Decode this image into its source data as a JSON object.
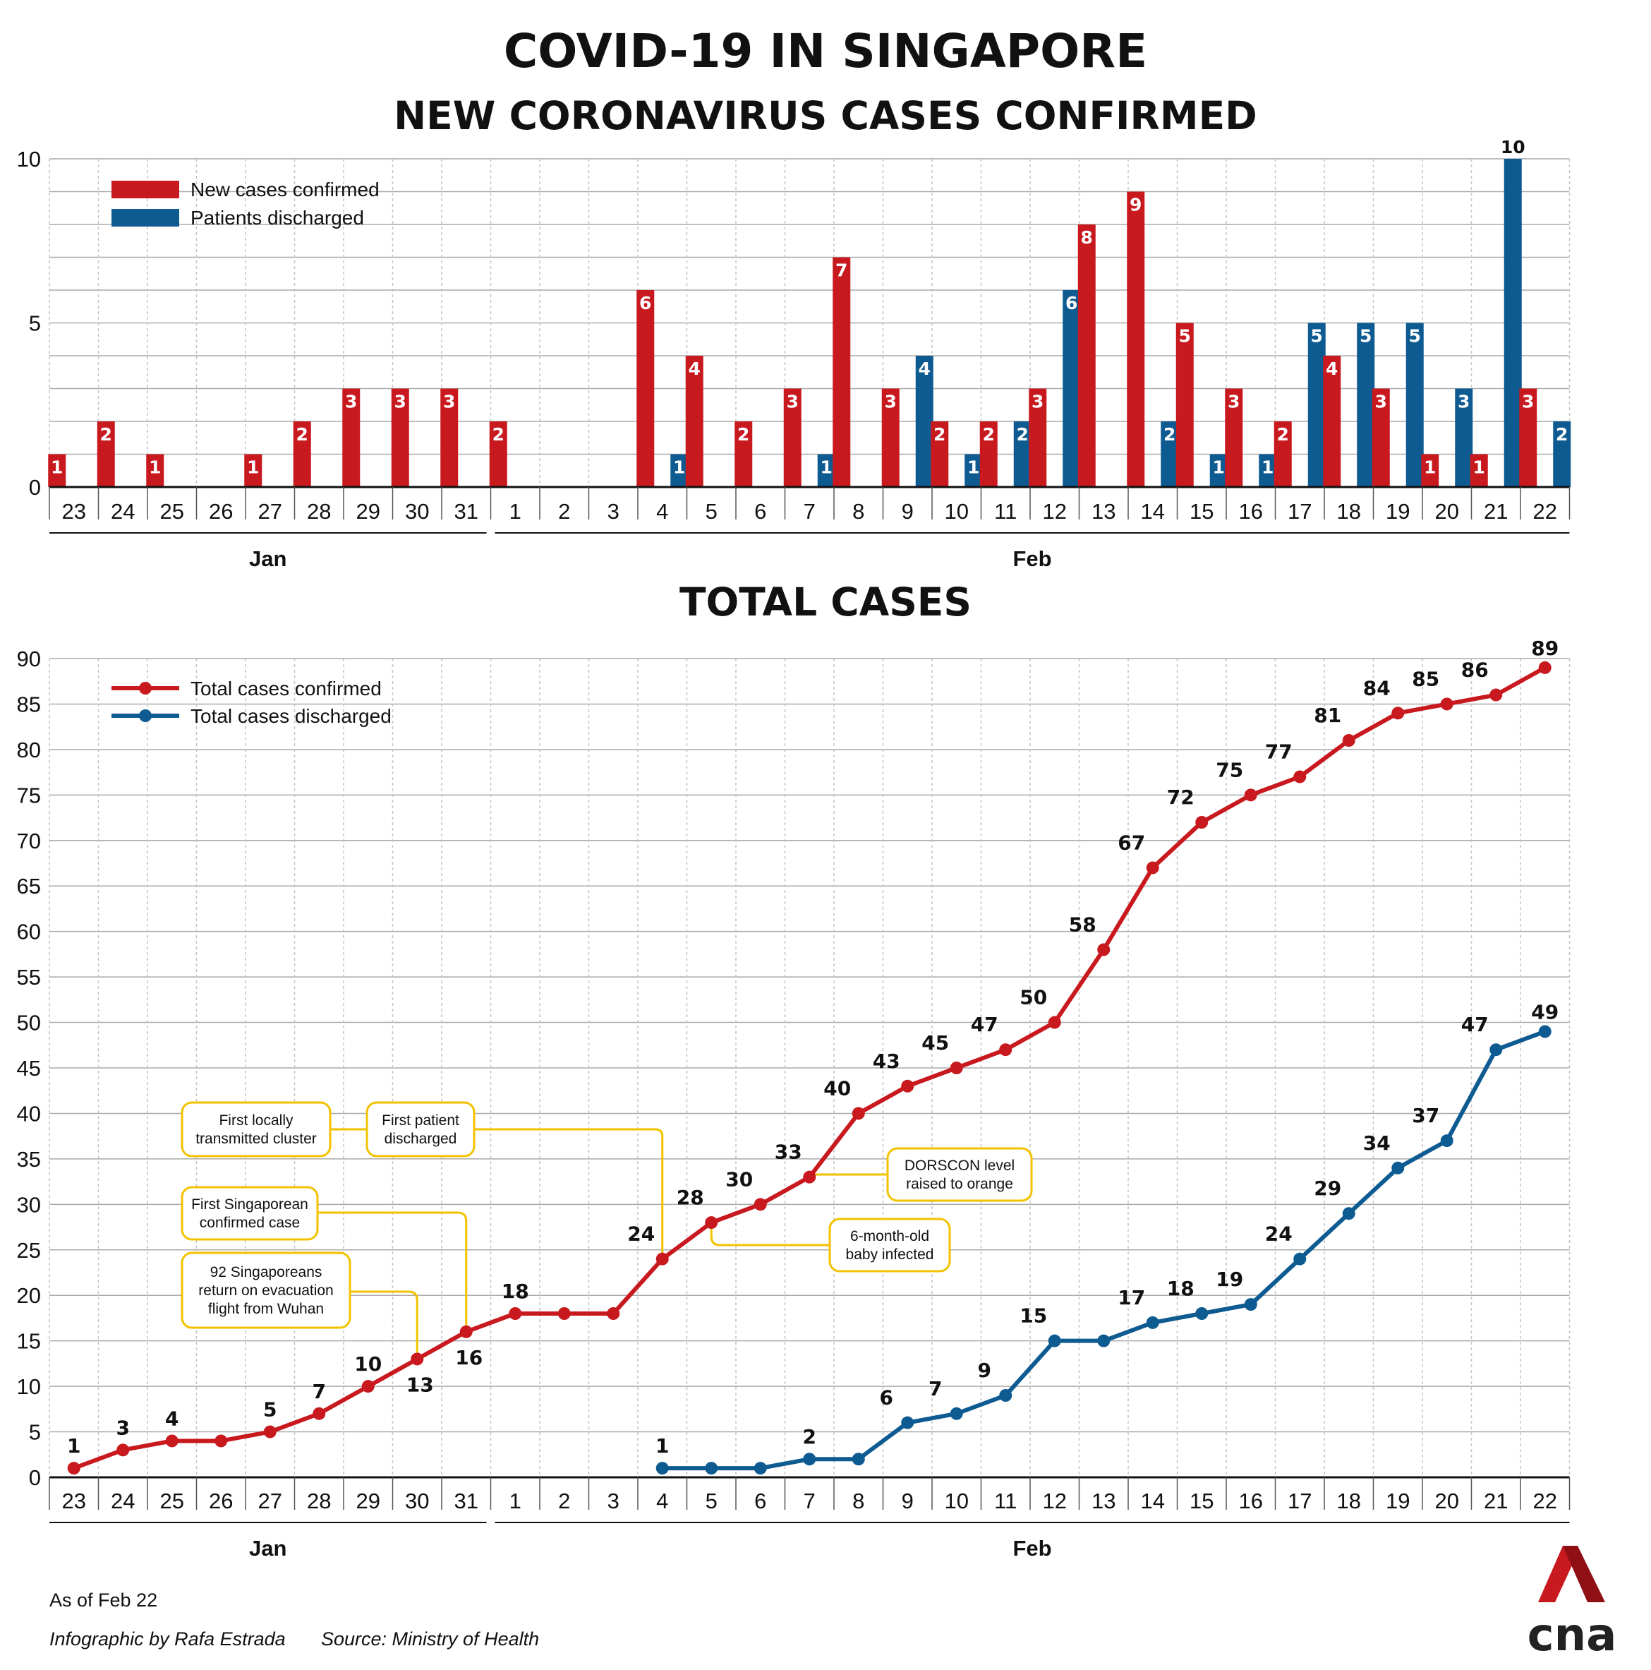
{
  "title": "COVID-19 IN SINGAPORE",
  "colors": {
    "confirmed": "#c8191f",
    "discharged": "#0e5b92",
    "annotation": "#f2c200",
    "grid": "#aaaaaa"
  },
  "chart_data": [
    {
      "type": "bar",
      "title": "NEW CORONAVIRUS CASES CONFIRMED",
      "categories": [
        "23",
        "24",
        "25",
        "26",
        "27",
        "28",
        "29",
        "30",
        "31",
        "1",
        "2",
        "3",
        "4",
        "5",
        "6",
        "7",
        "8",
        "9",
        "10",
        "11",
        "12",
        "13",
        "14",
        "15",
        "16",
        "17",
        "18",
        "19",
        "20",
        "21",
        "22"
      ],
      "month_groups": [
        {
          "label": "Jan",
          "from": 0,
          "to": 8
        },
        {
          "label": "Feb",
          "from": 9,
          "to": 30
        }
      ],
      "ylim": [
        0,
        10
      ],
      "yticks": [
        0,
        5,
        10
      ],
      "legend_position": "top-left",
      "grid": true,
      "series": [
        {
          "name": "New cases confirmed",
          "color": "#c8191f",
          "values": [
            1,
            2,
            1,
            0,
            1,
            2,
            3,
            3,
            3,
            2,
            0,
            0,
            6,
            4,
            2,
            3,
            7,
            3,
            2,
            2,
            3,
            8,
            9,
            5,
            3,
            2,
            4,
            3,
            1,
            1,
            3
          ]
        },
        {
          "name": "Patients discharged",
          "color": "#0e5b92",
          "values": [
            0,
            0,
            0,
            0,
            0,
            0,
            0,
            0,
            0,
            0,
            0,
            0,
            1,
            0,
            0,
            1,
            0,
            4,
            1,
            2,
            6,
            0,
            2,
            1,
            1,
            5,
            5,
            5,
            3,
            10,
            2
          ]
        }
      ]
    },
    {
      "type": "line",
      "title": "TOTAL CASES",
      "categories": [
        "23",
        "24",
        "25",
        "26",
        "27",
        "28",
        "29",
        "30",
        "31",
        "1",
        "2",
        "3",
        "4",
        "5",
        "6",
        "7",
        "8",
        "9",
        "10",
        "11",
        "12",
        "13",
        "14",
        "15",
        "16",
        "17",
        "18",
        "19",
        "20",
        "21",
        "22"
      ],
      "month_groups": [
        {
          "label": "Jan",
          "from": 0,
          "to": 8
        },
        {
          "label": "Feb",
          "from": 9,
          "to": 30
        }
      ],
      "ylim": [
        0,
        90
      ],
      "yticks": [
        0,
        5,
        10,
        15,
        20,
        25,
        30,
        35,
        40,
        45,
        50,
        55,
        60,
        65,
        70,
        75,
        80,
        85,
        90
      ],
      "legend_position": "top-left",
      "grid": true,
      "series": [
        {
          "name": "Total cases confirmed",
          "color": "#c8191f",
          "values": [
            1,
            3,
            4,
            4,
            5,
            7,
            10,
            13,
            16,
            18,
            18,
            18,
            24,
            28,
            30,
            33,
            40,
            43,
            45,
            47,
            50,
            58,
            67,
            72,
            75,
            77,
            81,
            84,
            85,
            86,
            89
          ],
          "labels": [
            "1",
            "3",
            "4",
            null,
            "5",
            "7",
            "10",
            "13",
            "16",
            "18",
            null,
            null,
            "24",
            "28",
            "30",
            "33",
            "40",
            "43",
            "45",
            "47",
            "50",
            "58",
            "67",
            "72",
            "75",
            "77",
            "81",
            "84",
            "85",
            "86",
            "89"
          ]
        },
        {
          "name": "Total cases discharged",
          "color": "#0e5b92",
          "values": [
            null,
            null,
            null,
            null,
            null,
            null,
            null,
            null,
            null,
            null,
            null,
            null,
            1,
            1,
            1,
            2,
            2,
            6,
            7,
            9,
            15,
            15,
            17,
            18,
            19,
            24,
            29,
            34,
            37,
            47,
            49
          ],
          "labels": [
            null,
            null,
            null,
            null,
            null,
            null,
            null,
            null,
            null,
            null,
            null,
            null,
            "1",
            null,
            null,
            "2",
            null,
            "6",
            "7",
            "9",
            "15",
            null,
            "17",
            "18",
            "19",
            "24",
            "29",
            "34",
            "37",
            "47",
            "49"
          ]
        }
      ],
      "annotations": [
        {
          "lines": [
            "First locally",
            "transmitted cluster"
          ],
          "target": 12
        },
        {
          "lines": [
            "First patient",
            "discharged"
          ],
          "target": 12
        },
        {
          "lines": [
            "First Singaporean",
            "confirmed case"
          ],
          "target": 8
        },
        {
          "lines": [
            "92 Singaporeans",
            "return on evacuation",
            "flight from Wuhan"
          ],
          "target": 7
        },
        {
          "lines": [
            "DORSCON level",
            "raised to orange"
          ],
          "target": 15
        },
        {
          "lines": [
            "6-month-old",
            "baby infected"
          ],
          "target": 13
        }
      ]
    }
  ],
  "footer": {
    "as_of": "As of Feb 22",
    "credit": "Infographic by Rafa Estrada",
    "source": "Source: Ministry of Health",
    "logo": "cna"
  }
}
